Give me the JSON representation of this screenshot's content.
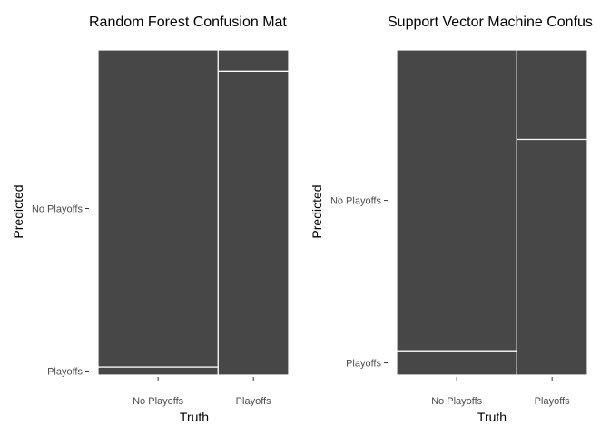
{
  "chart_data": [
    {
      "type": "mosaic",
      "title": "Random Forest Confusion Mat",
      "xlabel": "Truth",
      "ylabel": "Predicted",
      "x_categories": [
        "No Playoffs",
        "Playoffs"
      ],
      "y_categories": [
        "No Playoffs",
        "Playoffs"
      ],
      "y_tick_labels": [
        "No Playoffs",
        "Playoffs"
      ],
      "column_widths": [
        0.63,
        0.37
      ],
      "cells": [
        {
          "truth": "No Playoffs",
          "predicted": "Playoffs",
          "fraction": 0.025
        },
        {
          "truth": "No Playoffs",
          "predicted": "No Playoffs",
          "fraction": 0.975
        },
        {
          "truth": "Playoffs",
          "predicted": "Playoffs",
          "fraction": 0.935
        },
        {
          "truth": "Playoffs",
          "predicted": "No Playoffs",
          "fraction": 0.065
        }
      ],
      "fill_color": "#474747",
      "separator_color": "#ffffff"
    },
    {
      "type": "mosaic",
      "title": "Support Vector Machine Confus",
      "xlabel": "Truth",
      "ylabel": "Predicted",
      "x_categories": [
        "No Playoffs",
        "Playoffs"
      ],
      "y_categories": [
        "No Playoffs",
        "Playoffs"
      ],
      "y_tick_labels": [
        "No Playoffs",
        "Playoffs"
      ],
      "column_widths": [
        0.63,
        0.37
      ],
      "cells": [
        {
          "truth": "No Playoffs",
          "predicted": "Playoffs",
          "fraction": 0.075
        },
        {
          "truth": "No Playoffs",
          "predicted": "No Playoffs",
          "fraction": 0.925
        },
        {
          "truth": "Playoffs",
          "predicted": "Playoffs",
          "fraction": 0.725
        },
        {
          "truth": "Playoffs",
          "predicted": "No Playoffs",
          "fraction": 0.275
        }
      ],
      "fill_color": "#474747",
      "separator_color": "#ffffff"
    }
  ]
}
